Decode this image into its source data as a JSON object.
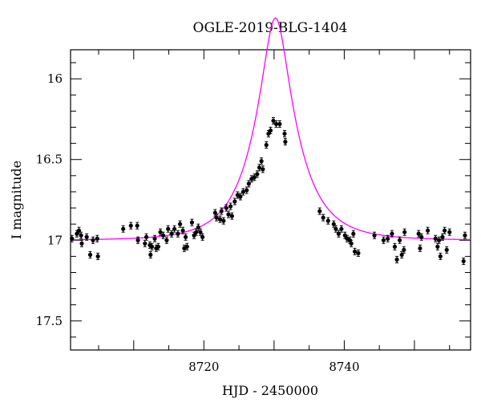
{
  "chart_data": {
    "type": "scatter",
    "title": "OGLE-2019-BLG-1404",
    "xlabel": "HJD - 2450000",
    "ylabel": "I magnitude",
    "xlim": [
      8701,
      8758
    ],
    "ylim": [
      17.68,
      15.82
    ],
    "y_inverted": true,
    "x_ticks": [
      8720,
      8740
    ],
    "x_tick_labels": [
      "8720",
      "8740"
    ],
    "y_ticks": [
      16,
      16.5,
      17,
      17.5
    ],
    "y_tick_labels": [
      "16",
      "16.5",
      "17",
      "17.5"
    ],
    "grid": false,
    "colors": {
      "points": "#000000",
      "model": "#ff00ff"
    },
    "series": [
      {
        "kind": "points",
        "points": [
          [
            8701.2,
            16.99,
            0.02
          ],
          [
            8701.9,
            16.96,
            0.02
          ],
          [
            8702.2,
            16.94,
            0.02
          ],
          [
            8702.5,
            16.97,
            0.02
          ],
          [
            8702.6,
            17.02,
            0.02
          ],
          [
            8703.3,
            16.98,
            0.02
          ],
          [
            8703.8,
            17.09,
            0.02
          ],
          [
            8704.2,
            17.0,
            0.02
          ],
          [
            8704.8,
            16.99,
            0.02
          ],
          [
            8704.9,
            17.1,
            0.02
          ],
          [
            8708.5,
            16.93,
            0.02
          ],
          [
            8709.6,
            16.91,
            0.02
          ],
          [
            8710.5,
            16.91,
            0.02
          ],
          [
            8710.6,
            17.0,
            0.02
          ],
          [
            8711.6,
            17.02,
            0.02
          ],
          [
            8711.8,
            16.98,
            0.02
          ],
          [
            8712.3,
            17.03,
            0.02
          ],
          [
            8712.4,
            17.09,
            0.02
          ],
          [
            8712.6,
            17.04,
            0.02
          ],
          [
            8713.0,
            16.99,
            0.02
          ],
          [
            8713.2,
            17.05,
            0.02
          ],
          [
            8713.5,
            17.04,
            0.02
          ],
          [
            8713.8,
            16.95,
            0.02
          ],
          [
            8714.2,
            16.97,
            0.02
          ],
          [
            8714.7,
            17.0,
            0.02
          ],
          [
            8714.9,
            16.93,
            0.02
          ],
          [
            8715.4,
            16.96,
            0.02
          ],
          [
            8715.8,
            16.93,
            0.02
          ],
          [
            8716.3,
            16.96,
            0.02
          ],
          [
            8716.6,
            16.9,
            0.02
          ],
          [
            8717.0,
            16.94,
            0.02
          ],
          [
            8717.2,
            17.05,
            0.02
          ],
          [
            8717.4,
            16.98,
            0.02
          ],
          [
            8717.6,
            17.04,
            0.02
          ],
          [
            8718.3,
            16.89,
            0.02
          ],
          [
            8718.6,
            16.97,
            0.02
          ],
          [
            8718.9,
            16.95,
            0.02
          ],
          [
            8719.2,
            16.92,
            0.02
          ],
          [
            8719.5,
            16.95,
            0.02
          ],
          [
            8719.8,
            16.98,
            0.02
          ],
          [
            8721.6,
            16.83,
            0.02
          ],
          [
            8721.8,
            16.86,
            0.02
          ],
          [
            8722.3,
            16.87,
            0.02
          ],
          [
            8722.5,
            16.82,
            0.02
          ],
          [
            8722.8,
            16.88,
            0.02
          ],
          [
            8723.2,
            16.8,
            0.02
          ],
          [
            8723.5,
            16.84,
            0.02
          ],
          [
            8723.8,
            16.79,
            0.02
          ],
          [
            8724.0,
            16.85,
            0.02
          ],
          [
            8724.4,
            16.76,
            0.02
          ],
          [
            8724.8,
            16.72,
            0.02
          ],
          [
            8725.2,
            16.73,
            0.02
          ],
          [
            8725.6,
            16.7,
            0.02
          ],
          [
            8726.1,
            16.69,
            0.02
          ],
          [
            8726.4,
            16.65,
            0.02
          ],
          [
            8726.8,
            16.62,
            0.02
          ],
          [
            8727.2,
            16.61,
            0.02
          ],
          [
            8727.6,
            16.59,
            0.02
          ],
          [
            8727.9,
            16.55,
            0.02
          ],
          [
            8728.2,
            16.51,
            0.02
          ],
          [
            8728.4,
            16.56,
            0.02
          ],
          [
            8728.9,
            16.41,
            0.02
          ],
          [
            8729.2,
            16.34,
            0.02
          ],
          [
            8729.5,
            16.32,
            0.02
          ],
          [
            8729.9,
            16.26,
            0.02
          ],
          [
            8730.3,
            16.28,
            0.02
          ],
          [
            8730.8,
            16.28,
            0.02
          ],
          [
            8731.5,
            16.34,
            0.02
          ],
          [
            8731.6,
            16.39,
            0.02
          ],
          [
            8736.5,
            16.82,
            0.02
          ],
          [
            8737.0,
            16.86,
            0.02
          ],
          [
            8737.7,
            16.88,
            0.02
          ],
          [
            8738.5,
            16.9,
            0.02
          ],
          [
            8738.8,
            16.93,
            0.02
          ],
          [
            8739.2,
            16.96,
            0.02
          ],
          [
            8739.6,
            16.93,
            0.02
          ],
          [
            8740.1,
            16.97,
            0.02
          ],
          [
            8740.4,
            16.99,
            0.02
          ],
          [
            8740.8,
            17.0,
            0.02
          ],
          [
            8741.0,
            17.02,
            0.02
          ],
          [
            8741.3,
            16.96,
            0.02
          ],
          [
            8741.5,
            17.07,
            0.02
          ],
          [
            8742.0,
            17.08,
            0.02
          ],
          [
            8744.3,
            16.97,
            0.02
          ],
          [
            8745.6,
            17.0,
            0.02
          ],
          [
            8746.2,
            16.99,
            0.02
          ],
          [
            8746.8,
            16.96,
            0.02
          ],
          [
            8747.2,
            17.04,
            0.02
          ],
          [
            8747.5,
            17.12,
            0.02
          ],
          [
            8747.9,
            17.0,
            0.02
          ],
          [
            8748.2,
            17.09,
            0.02
          ],
          [
            8748.5,
            17.06,
            0.02
          ],
          [
            8748.6,
            16.95,
            0.02
          ],
          [
            8750.6,
            16.96,
            0.02
          ],
          [
            8750.8,
            17.05,
            0.02
          ],
          [
            8751.0,
            16.98,
            0.02
          ],
          [
            8751.9,
            16.94,
            0.02
          ],
          [
            8753.0,
            16.99,
            0.02
          ],
          [
            8753.3,
            17.04,
            0.02
          ],
          [
            8753.5,
            17.0,
            0.02
          ],
          [
            8753.7,
            17.1,
            0.02
          ],
          [
            8754.0,
            16.98,
            0.02
          ],
          [
            8754.3,
            16.94,
            0.02
          ],
          [
            8754.6,
            17.06,
            0.02
          ],
          [
            8755.0,
            16.95,
            0.02
          ],
          [
            8757.0,
            17.13,
            0.02
          ],
          [
            8757.2,
            16.97,
            0.02
          ]
        ]
      },
      {
        "kind": "model",
        "t0": 8730.2,
        "tE": 6.0,
        "u0": 0.29,
        "mbase": 17.0
      }
    ]
  }
}
